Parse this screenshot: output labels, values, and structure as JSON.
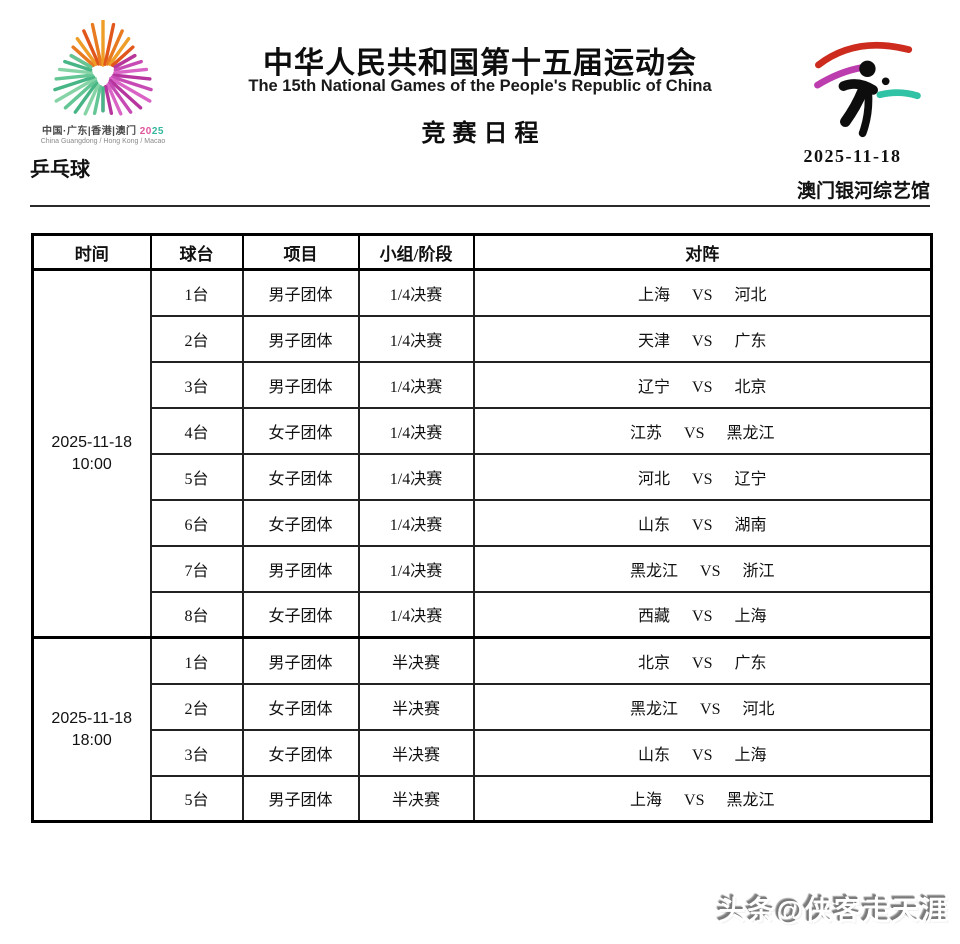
{
  "header": {
    "title_cn": "中华人民共和国第十五届运动会",
    "title_en": "The 15th National Games of the People's Republic of China",
    "schedule_title": "竞赛日程",
    "sport": "乒乓球",
    "date": "2025-11-18",
    "venue": "澳门银河综艺馆",
    "logo_left": {
      "caption_cn": "中国·广东|香港|澳门",
      "year_part1": "20",
      "year_part2": "25",
      "caption_en": "China Guangdong / Hong Kong / Macao"
    }
  },
  "table": {
    "columns": [
      "时间",
      "球台",
      "项目",
      "小组/阶段",
      "对阵"
    ],
    "vs_label": "VS",
    "groups": [
      {
        "time_line1": "2025-11-18",
        "time_line2": "10:00",
        "rows": [
          {
            "table_no": "1台",
            "event": "男子团体",
            "stage": "1/4决赛",
            "home": "上海",
            "away": "河北"
          },
          {
            "table_no": "2台",
            "event": "男子团体",
            "stage": "1/4决赛",
            "home": "天津",
            "away": "广东"
          },
          {
            "table_no": "3台",
            "event": "男子团体",
            "stage": "1/4决赛",
            "home": "辽宁",
            "away": "北京"
          },
          {
            "table_no": "4台",
            "event": "女子团体",
            "stage": "1/4决赛",
            "home": "江苏",
            "away": "黑龙江"
          },
          {
            "table_no": "5台",
            "event": "女子团体",
            "stage": "1/4决赛",
            "home": "河北",
            "away": "辽宁"
          },
          {
            "table_no": "6台",
            "event": "女子团体",
            "stage": "1/4决赛",
            "home": "山东",
            "away": "湖南"
          },
          {
            "table_no": "7台",
            "event": "男子团体",
            "stage": "1/4决赛",
            "home": "黑龙江",
            "away": "浙江"
          },
          {
            "table_no": "8台",
            "event": "女子团体",
            "stage": "1/4决赛",
            "home": "西藏",
            "away": "上海"
          }
        ]
      },
      {
        "time_line1": "2025-11-18",
        "time_line2": "18:00",
        "rows": [
          {
            "table_no": "1台",
            "event": "男子团体",
            "stage": "半决赛",
            "home": "北京",
            "away": "广东"
          },
          {
            "table_no": "2台",
            "event": "女子团体",
            "stage": "半决赛",
            "home": "黑龙江",
            "away": "河北"
          },
          {
            "table_no": "3台",
            "event": "女子团体",
            "stage": "半决赛",
            "home": "山东",
            "away": "上海"
          },
          {
            "table_no": "5台",
            "event": "男子团体",
            "stage": "半决赛",
            "home": "上海",
            "away": "黑龙江"
          }
        ]
      }
    ]
  },
  "watermark": "头条@侠客走天涯",
  "colors": {
    "firework_orange": [
      "#E1561B",
      "#E87A1F",
      "#EE9D27"
    ],
    "firework_magenta": [
      "#B6359E",
      "#C74BB4",
      "#D964C6"
    ],
    "firework_green": [
      "#47B585",
      "#63C694",
      "#86D4A6"
    ],
    "swoosh_red": "#CC2B1D",
    "swoosh_magenta": "#BC3DAE",
    "swoosh_teal": "#2FC2A5",
    "pictogram_black": "#0d0d0d",
    "border_black": "#000000"
  }
}
